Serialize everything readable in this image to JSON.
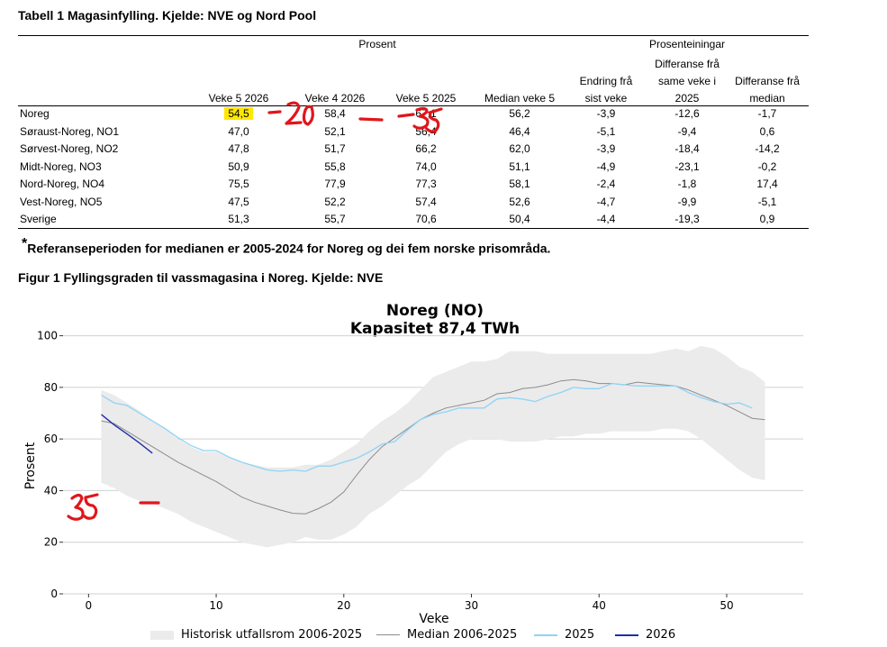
{
  "table": {
    "title": "Tabell 1 Magasinfylling. Kjelde: NVE og Nord Pool",
    "group_headers": [
      "Prosent",
      "Prosenteiningar"
    ],
    "columns": [
      [
        "Veke 5 2026"
      ],
      [
        "Veke 4 2026"
      ],
      [
        "Veke 5 2025"
      ],
      [
        "Median veke 5"
      ],
      [
        "Endring frå",
        "sist veke"
      ],
      [
        "Differanse frå",
        "same veke i",
        "2025"
      ],
      [
        "Differanse frå",
        "median"
      ]
    ],
    "rows": [
      {
        "name": "Noreg",
        "values": [
          "54,5",
          "58,4",
          "67,1",
          "56,2",
          "-3,9",
          "-12,6",
          "-1,7"
        ]
      },
      {
        "name": "Søraust-Noreg, NO1",
        "values": [
          "47,0",
          "52,1",
          "56,4",
          "46,4",
          "-5,1",
          "-9,4",
          "0,6"
        ]
      },
      {
        "name": "Sørvest-Noreg, NO2",
        "values": [
          "47,8",
          "51,7",
          "66,2",
          "62,0",
          "-3,9",
          "-18,4",
          "-14,2"
        ]
      },
      {
        "name": "Midt-Noreg, NO3",
        "values": [
          "50,9",
          "55,8",
          "74,0",
          "51,1",
          "-4,9",
          "-23,1",
          "-0,2"
        ]
      },
      {
        "name": "Nord-Noreg, NO4",
        "values": [
          "75,5",
          "77,9",
          "77,3",
          "58,1",
          "-2,4",
          "-1,8",
          "17,4"
        ]
      },
      {
        "name": "Vest-Noreg, NO5",
        "values": [
          "47,5",
          "52,2",
          "57,4",
          "52,6",
          "-4,7",
          "-9,9",
          "-5,1"
        ]
      },
      {
        "name": "Sverige",
        "values": [
          "51,3",
          "55,7",
          "70,6",
          "50,4",
          "-4,4",
          "-19,3",
          "0,9"
        ]
      }
    ],
    "highlight_color": "#ffe800"
  },
  "footnote": {
    "marker": "*",
    "text": "Referanseperioden for medianen er 2005-2024 for Noreg og dei fem norske prisområda."
  },
  "figure_title": "Figur 1 Fyllingsgraden til vassmagasina i Noreg. Kjelde: NVE",
  "annotations": {
    "color": "#e0161b",
    "marks": [
      "-20",
      "-",
      "35",
      "35",
      "-"
    ]
  },
  "chart_data": {
    "type": "line",
    "title": "Noreg (NO)",
    "subtitle": "Kapasitet 87,4 TWh",
    "xlabel": "Veke",
    "ylabel": "Prosent",
    "xlim": [
      -2,
      56
    ],
    "ylim": [
      0,
      103
    ],
    "xticks": [
      0,
      10,
      20,
      30,
      40,
      50
    ],
    "yticks": [
      0,
      20,
      40,
      60,
      80,
      100
    ],
    "grid": "horizontal",
    "legend_position": "bottom",
    "band": {
      "name": "Historisk utfallsrom 2006-2025",
      "color": "#ebebeb",
      "x": [
        1,
        2,
        3,
        4,
        5,
        6,
        7,
        8,
        9,
        10,
        11,
        12,
        13,
        14,
        15,
        16,
        17,
        18,
        19,
        20,
        21,
        22,
        23,
        24,
        25,
        26,
        27,
        28,
        29,
        30,
        31,
        32,
        33,
        34,
        35,
        36,
        37,
        38,
        39,
        40,
        41,
        42,
        43,
        44,
        45,
        46,
        47,
        48,
        49,
        50,
        51,
        52,
        53
      ],
      "lower": [
        43,
        41,
        38,
        36,
        35,
        33,
        31,
        28,
        26,
        24,
        22,
        20,
        19,
        18,
        19,
        20,
        22,
        21,
        21,
        23,
        26,
        31,
        34,
        38,
        42,
        45,
        50,
        55,
        58,
        60,
        60,
        60,
        59,
        59,
        59,
        60,
        61,
        61,
        62,
        62,
        63,
        63,
        63,
        63,
        64,
        64,
        63,
        60,
        56,
        52,
        48,
        45,
        44
      ],
      "upper": [
        79,
        77,
        74,
        71,
        67,
        64,
        60,
        57,
        55,
        55,
        53,
        51,
        50,
        49,
        49,
        49,
        50,
        50,
        52,
        55,
        58,
        63,
        67,
        70,
        74,
        79,
        84,
        86,
        88,
        90,
        90,
        91,
        94,
        94,
        94,
        93,
        93,
        93,
        93,
        93,
        93,
        93,
        93,
        93,
        94,
        95,
        94,
        96,
        95,
        92,
        88,
        86,
        82
      ]
    },
    "series": [
      {
        "name": "Median 2006-2025",
        "color": "#8c8c8c",
        "x": [
          1,
          2,
          3,
          4,
          5,
          6,
          7,
          8,
          9,
          10,
          11,
          12,
          13,
          14,
          15,
          16,
          17,
          18,
          19,
          20,
          21,
          22,
          23,
          24,
          25,
          26,
          27,
          28,
          29,
          30,
          31,
          32,
          33,
          34,
          35,
          36,
          37,
          38,
          39,
          40,
          41,
          42,
          43,
          44,
          45,
          46,
          47,
          48,
          49,
          50,
          51,
          52,
          53
        ],
        "values": [
          67,
          66,
          63,
          60,
          57,
          54,
          51,
          48.5,
          46,
          43.5,
          40.5,
          37.5,
          35.5,
          34,
          32.5,
          31.2,
          31,
          33,
          35.5,
          39.5,
          46,
          52,
          57,
          60.5,
          64,
          67.5,
          70,
          72,
          73,
          74,
          75,
          77.5,
          78,
          79.5,
          80,
          81,
          82.5,
          83,
          82.5,
          81.5,
          81.5,
          81,
          82,
          81.5,
          81,
          80.5,
          79,
          77,
          75,
          73,
          70.5,
          68,
          67.5
        ]
      },
      {
        "name": "2025",
        "color": "#8fd3f7",
        "x": [
          1,
          2,
          3,
          4,
          5,
          6,
          7,
          8,
          9,
          10,
          11,
          12,
          13,
          14,
          15,
          16,
          17,
          18,
          19,
          20,
          21,
          22,
          23,
          24,
          25,
          26,
          27,
          28,
          29,
          30,
          31,
          32,
          33,
          34,
          35,
          36,
          37,
          38,
          39,
          40,
          41,
          42,
          43,
          44,
          45,
          46,
          47,
          48,
          49,
          50,
          51,
          52
        ],
        "values": [
          77,
          74,
          73,
          70,
          67,
          64,
          60.5,
          57.5,
          55.5,
          55.5,
          53,
          51,
          49.5,
          48,
          47.5,
          48,
          47.5,
          49.5,
          49.5,
          51,
          52.5,
          55,
          58,
          59,
          63.5,
          67.5,
          69.5,
          70.5,
          72,
          72,
          72,
          75.5,
          76,
          75.5,
          74.5,
          76.5,
          78,
          80,
          79.5,
          79.5,
          81.5,
          81,
          80.5,
          80.5,
          80.5,
          80.5,
          78,
          76,
          74.5,
          73.5,
          74,
          72
        ]
      },
      {
        "name": "2026",
        "color": "#1f2fa8",
        "x": [
          1,
          2,
          3,
          4,
          5
        ],
        "values": [
          69.5,
          65.5,
          62,
          58.4,
          54.5
        ]
      }
    ]
  }
}
